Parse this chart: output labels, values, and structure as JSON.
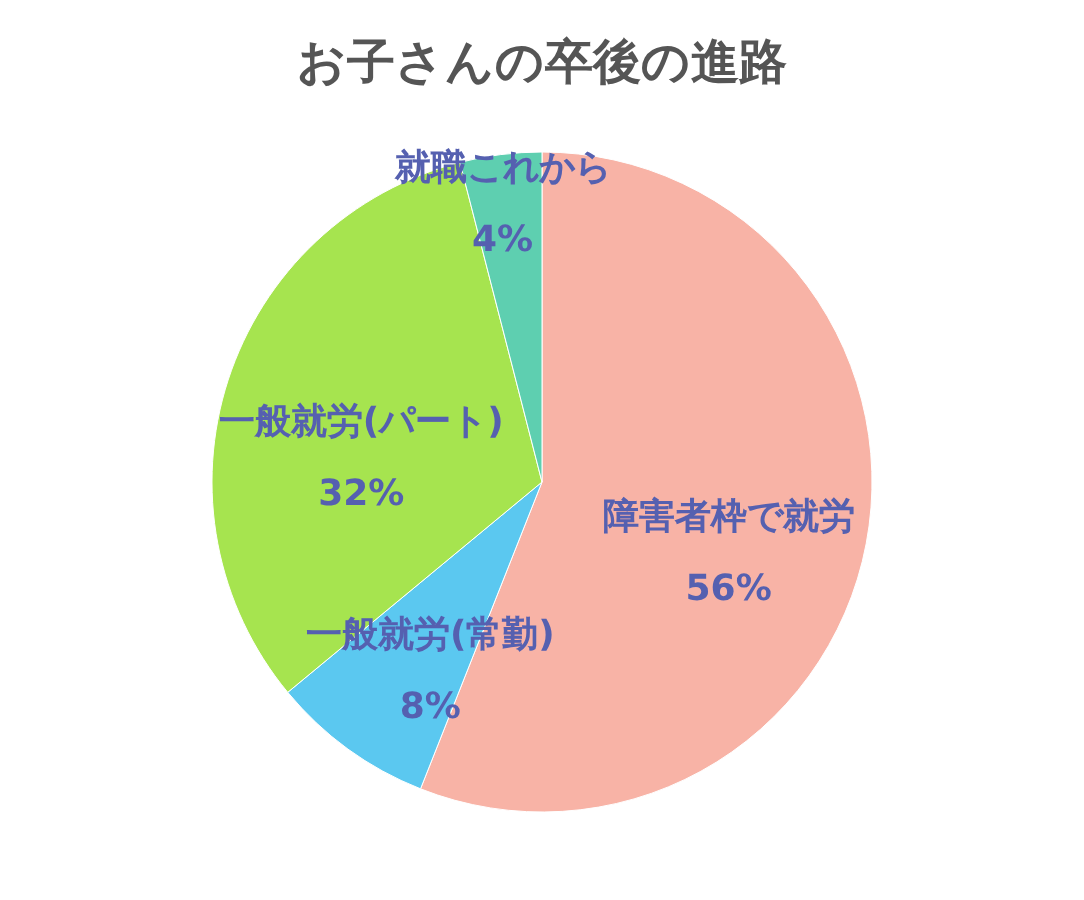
{
  "chart_data": {
    "type": "pie",
    "title": "お子さんの卒後の進路",
    "categories": [
      "障害者枠で就労",
      "一般就労(常勤)",
      "一般就労(パート)",
      "就職これから"
    ],
    "values": [
      56,
      8,
      32,
      4
    ],
    "value_labels": [
      "56%",
      "8%",
      "32%",
      "4%"
    ],
    "colors": [
      "#f8b3a6",
      "#5bc8f0",
      "#a6e44f",
      "#5ecfb0"
    ],
    "legend": false
  }
}
